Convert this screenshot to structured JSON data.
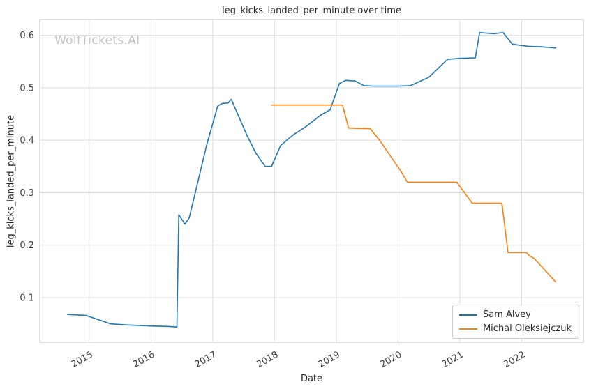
{
  "chart_data": {
    "type": "line",
    "title": "leg_kicks_landed_per_minute over time",
    "xlabel": "Date",
    "ylabel": "leg_kicks_landed_per_minute",
    "watermark": "WolfTickets.AI",
    "grid": true,
    "legend_position": "lower right",
    "xlim": [
      2014.2,
      2023.0
    ],
    "ylim": [
      0.015,
      0.63
    ],
    "xticks": [
      {
        "v": 2015,
        "label": "2015"
      },
      {
        "v": 2016,
        "label": "2016"
      },
      {
        "v": 2017,
        "label": "2017"
      },
      {
        "v": 2018,
        "label": "2018"
      },
      {
        "v": 2019,
        "label": "2019"
      },
      {
        "v": 2020,
        "label": "2020"
      },
      {
        "v": 2021,
        "label": "2021"
      },
      {
        "v": 2022,
        "label": "2022"
      }
    ],
    "yticks": [
      {
        "v": 0.1,
        "label": "0.1"
      },
      {
        "v": 0.2,
        "label": "0.2"
      },
      {
        "v": 0.3,
        "label": "0.3"
      },
      {
        "v": 0.4,
        "label": "0.4"
      },
      {
        "v": 0.5,
        "label": "0.5"
      },
      {
        "v": 0.6,
        "label": "0.6"
      }
    ],
    "colors": {
      "grid": "#dcdcdc",
      "spine": "#cccccc",
      "text": "#3b3b3b",
      "title": "#262626"
    },
    "series": [
      {
        "name": "Sam Alvey",
        "color": "#1f77b4",
        "x": [
          2014.65,
          2014.95,
          2015.05,
          2015.35,
          2015.6,
          2016.0,
          2016.3,
          2016.42,
          2016.45,
          2016.55,
          2016.62,
          2016.9,
          2017.08,
          2017.15,
          2017.25,
          2017.3,
          2017.55,
          2017.7,
          2017.85,
          2017.95,
          2018.1,
          2018.3,
          2018.5,
          2018.75,
          2018.9,
          2019.05,
          2019.15,
          2019.3,
          2019.45,
          2019.6,
          2020.0,
          2020.2,
          2020.5,
          2020.8,
          2021.0,
          2021.25,
          2021.32,
          2021.55,
          2021.7,
          2021.85,
          2022.1,
          2022.3,
          2022.55
        ],
        "y": [
          0.068,
          0.066,
          0.062,
          0.05,
          0.048,
          0.046,
          0.045,
          0.044,
          0.258,
          0.24,
          0.252,
          0.39,
          0.465,
          0.47,
          0.471,
          0.478,
          0.41,
          0.375,
          0.35,
          0.35,
          0.39,
          0.41,
          0.425,
          0.448,
          0.458,
          0.508,
          0.514,
          0.513,
          0.504,
          0.503,
          0.503,
          0.504,
          0.52,
          0.554,
          0.556,
          0.557,
          0.605,
          0.603,
          0.605,
          0.583,
          0.579,
          0.578,
          0.576
        ]
      },
      {
        "name": "Michal Oleksiejczuk",
        "color": "#ff7f0e",
        "x": [
          2017.95,
          2019.1,
          2019.2,
          2019.55,
          2019.7,
          2020.05,
          2020.15,
          2020.95,
          2021.2,
          2021.68,
          2021.78,
          2022.08,
          2022.12,
          2022.2,
          2022.55
        ],
        "y": [
          0.467,
          0.467,
          0.423,
          0.422,
          0.4,
          0.34,
          0.32,
          0.32,
          0.28,
          0.28,
          0.186,
          0.186,
          0.18,
          0.175,
          0.13
        ]
      }
    ]
  }
}
